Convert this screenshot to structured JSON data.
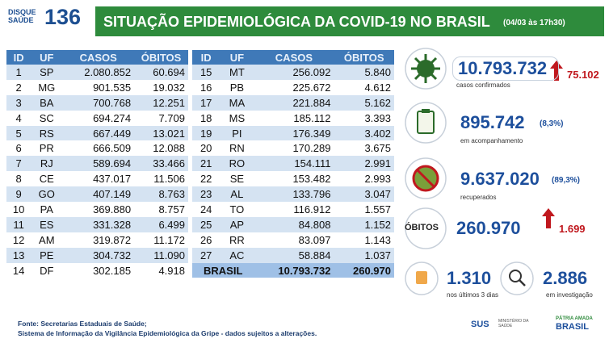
{
  "header": {
    "logo_top": "DISQUE",
    "logo_bottom": "SAÚDE",
    "logo_number": "136",
    "title": "SITUAÇÃO EPIDEMIOLÓGICA DA COVID-19 NO BRASIL",
    "timestamp": "(04/03 às 17h30)"
  },
  "table": {
    "columns": [
      "ID",
      "UF",
      "CASOS",
      "ÓBITOS"
    ],
    "rows": [
      [
        "1",
        "SP",
        "2.080.852",
        "60.694"
      ],
      [
        "2",
        "MG",
        "901.535",
        "19.032"
      ],
      [
        "3",
        "BA",
        "700.768",
        "12.251"
      ],
      [
        "4",
        "SC",
        "694.274",
        "7.709"
      ],
      [
        "5",
        "RS",
        "667.449",
        "13.021"
      ],
      [
        "6",
        "PR",
        "666.509",
        "12.088"
      ],
      [
        "7",
        "RJ",
        "589.694",
        "33.466"
      ],
      [
        "8",
        "CE",
        "437.017",
        "11.506"
      ],
      [
        "9",
        "GO",
        "407.149",
        "8.763"
      ],
      [
        "10",
        "PA",
        "369.880",
        "8.757"
      ],
      [
        "11",
        "ES",
        "331.328",
        "6.499"
      ],
      [
        "12",
        "AM",
        "319.872",
        "11.172"
      ],
      [
        "13",
        "PE",
        "304.732",
        "11.090"
      ],
      [
        "14",
        "DF",
        "302.185",
        "4.918"
      ],
      [
        "15",
        "MT",
        "256.092",
        "5.840"
      ],
      [
        "16",
        "PB",
        "225.672",
        "4.612"
      ],
      [
        "17",
        "MA",
        "221.884",
        "5.162"
      ],
      [
        "18",
        "MS",
        "185.112",
        "3.393"
      ],
      [
        "19",
        "PI",
        "176.349",
        "3.402"
      ],
      [
        "20",
        "RN",
        "170.289",
        "3.675"
      ],
      [
        "21",
        "RO",
        "154.111",
        "2.991"
      ],
      [
        "22",
        "SE",
        "153.482",
        "2.993"
      ],
      [
        "23",
        "AL",
        "133.796",
        "3.047"
      ],
      [
        "24",
        "TO",
        "116.912",
        "1.557"
      ],
      [
        "25",
        "AP",
        "84.808",
        "1.152"
      ],
      [
        "26",
        "RR",
        "83.097",
        "1.143"
      ],
      [
        "27",
        "AC",
        "58.884",
        "1.037"
      ]
    ],
    "total": [
      "BRASIL",
      "10.793.732",
      "260.970"
    ]
  },
  "stats": {
    "confirmed": {
      "value": "10.793.732",
      "new": "75.102",
      "label": "casos confirmados"
    },
    "monitoring": {
      "value": "895.742",
      "percent": "(8,3%)",
      "label": "em acompanhamento"
    },
    "recovered": {
      "value": "9.637.020",
      "percent": "(89,3%)",
      "label": "recuperados"
    },
    "deaths": {
      "label": "ÓBITOS",
      "value": "260.970",
      "new": "1.699"
    },
    "last_days": {
      "value": "1.310",
      "label": "nos últimos 3 dias"
    },
    "investigation": {
      "value": "2.886",
      "label": "em investigação"
    }
  },
  "footer": {
    "source": "Fonte: Secretarias Estaduais de Saúde;",
    "system": "Sistema de Informação da Vigilância Epidemiológica da Gripe - dados sujeitos a alterações.",
    "sus": "SUS",
    "ministry": "MINISTÉRIO DA SAÚDE",
    "motto": "PÁTRIA AMADA",
    "country": "BRASIL"
  }
}
